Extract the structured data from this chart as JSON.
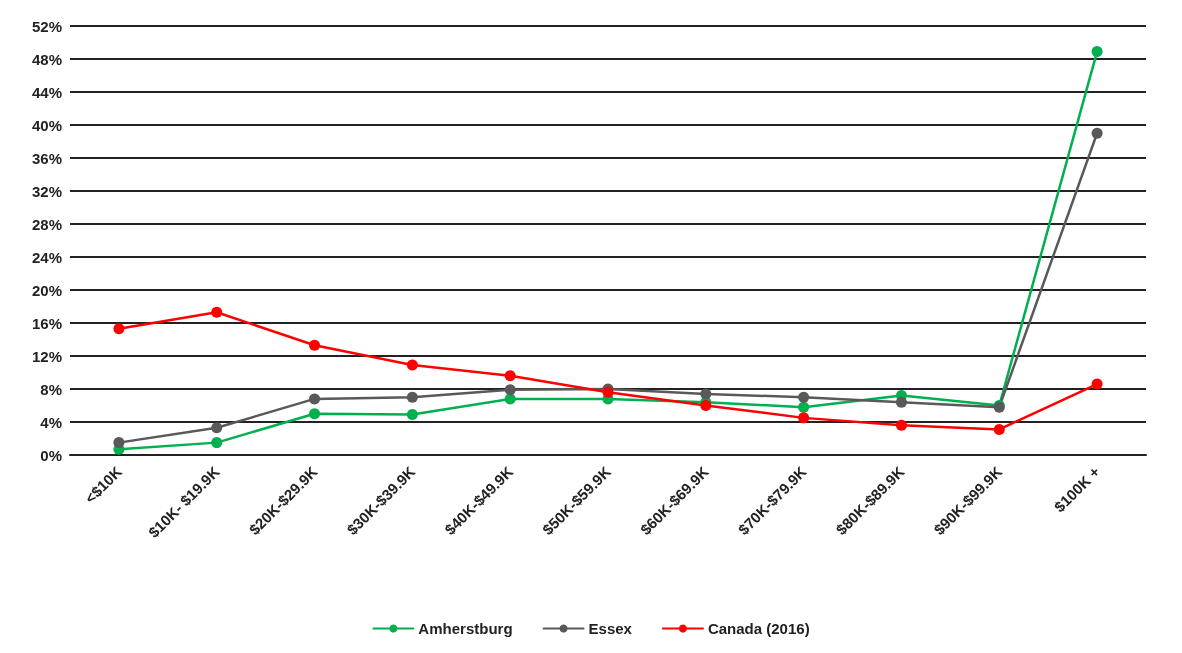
{
  "chart_data": {
    "type": "line",
    "categories": [
      "<$10K",
      "$10K- $19.9K",
      "$20K-$29.9K",
      "$30K-$39.9K",
      "$40K-$49.9K",
      "$50K-$59.9K",
      "$60K-$69.9K",
      "$70K-$79.9K",
      "$80K-$89.9K",
      "$90K-$99.9K",
      "$100K +"
    ],
    "series": [
      {
        "name": "Amherstburg",
        "color": "#00b050",
        "values": [
          0.7,
          1.5,
          5.0,
          4.9,
          6.8,
          6.8,
          6.4,
          5.8,
          7.2,
          6.0,
          48.9
        ]
      },
      {
        "name": "Essex",
        "color": "#595959",
        "values": [
          1.5,
          3.3,
          6.8,
          7.0,
          7.9,
          8.0,
          7.4,
          7.0,
          6.4,
          5.8,
          39.0
        ]
      },
      {
        "name": "Canada (2016)",
        "color": "#ff0000",
        "values": [
          15.3,
          17.3,
          13.3,
          10.9,
          9.6,
          7.6,
          6.0,
          4.5,
          3.6,
          3.1,
          8.6
        ]
      }
    ],
    "ylim": [
      0,
      52
    ],
    "yticks": [
      {
        "value": 0,
        "label": "0%"
      },
      {
        "value": 4,
        "label": "4%"
      },
      {
        "value": 8,
        "label": "8%"
      },
      {
        "value": 12,
        "label": "12%"
      },
      {
        "value": 16,
        "label": "16%"
      },
      {
        "value": 20,
        "label": "20%"
      },
      {
        "value": 24,
        "label": "24%"
      },
      {
        "value": 28,
        "label": "28%"
      },
      {
        "value": 32,
        "label": "32%"
      },
      {
        "value": 36,
        "label": "36%"
      },
      {
        "value": 40,
        "label": "40%"
      },
      {
        "value": 44,
        "label": "44%"
      },
      {
        "value": 48,
        "label": "48%"
      },
      {
        "value": 52,
        "label": "52%"
      }
    ],
    "grid": "y",
    "legend": "bottom",
    "marker": "circle",
    "line_style": "solid"
  }
}
